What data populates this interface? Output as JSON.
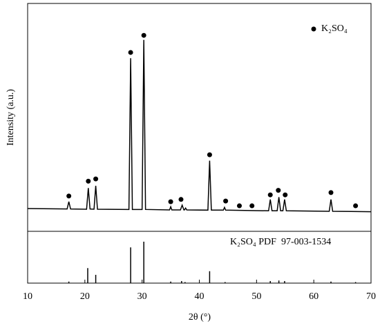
{
  "chart_data": [
    {
      "type": "line",
      "ylabel": "Intensity (a.u.)",
      "color": "#000000",
      "xlim": [
        10,
        70
      ],
      "ylim": [
        0,
        100
      ],
      "x": [
        10,
        16.9,
        17.2,
        17.5,
        20.3,
        20.6,
        20.9,
        21.6,
        21.9,
        22.2,
        27.7,
        28.0,
        28.3,
        30.0,
        30.3,
        30.6,
        34.8,
        35.0,
        35.2,
        36.7,
        37.0,
        37.3,
        37.4,
        37.6,
        37.8,
        41.5,
        41.8,
        42.1,
        44.2,
        44.4,
        44.6,
        52.1,
        52.4,
        52.7,
        53.6,
        53.9,
        54.2,
        54.6,
        54.9,
        55.2,
        62.7,
        63.0,
        63.3,
        70
      ],
      "values": [
        10,
        9.8,
        13,
        9.8,
        9.7,
        19,
        9.8,
        9.7,
        20,
        9.7,
        9.6,
        76,
        9.6,
        9.6,
        84,
        9.6,
        9.4,
        10.8,
        9.4,
        9.4,
        11.5,
        9.4,
        9.4,
        10.2,
        9.4,
        9.3,
        31,
        9.3,
        9.3,
        10.5,
        9.3,
        9.0,
        14,
        9.0,
        9.0,
        15,
        9.0,
        9.0,
        14,
        9.0,
        8.8,
        14,
        8.8,
        8.6
      ],
      "markers": {
        "name": "K₂SO₄",
        "color": "#000000",
        "x": [
          17.2,
          20.6,
          21.9,
          28.0,
          30.3,
          35.0,
          36.8,
          41.8,
          44.6,
          47.0,
          49.2,
          52.4,
          53.8,
          55.0,
          63.0,
          67.3
        ],
        "values": [
          15.5,
          22,
          23,
          78.5,
          86,
          13,
          14,
          33.6,
          13.3,
          11.2,
          11.2,
          16,
          18,
          16,
          17,
          11.2
        ]
      }
    },
    {
      "type": "stem",
      "label": "K₂SO₄ PDF  97-003-1534",
      "xlabel": "2θ (°)",
      "color": "#000000",
      "xlim": [
        10,
        70
      ],
      "ylim": [
        0,
        100
      ],
      "xticks": [
        10,
        20,
        30,
        40,
        50,
        60,
        70
      ],
      "x": [
        17.2,
        20.5,
        21.9,
        28.0,
        30.3,
        35.0,
        36.9,
        37.5,
        41.8,
        44.5,
        52.4,
        53.9,
        54.9,
        63.0,
        67.3
      ],
      "values": [
        3,
        29,
        16,
        69,
        80,
        3,
        4,
        2,
        23,
        2,
        4,
        5,
        4,
        3,
        2
      ]
    }
  ]
}
